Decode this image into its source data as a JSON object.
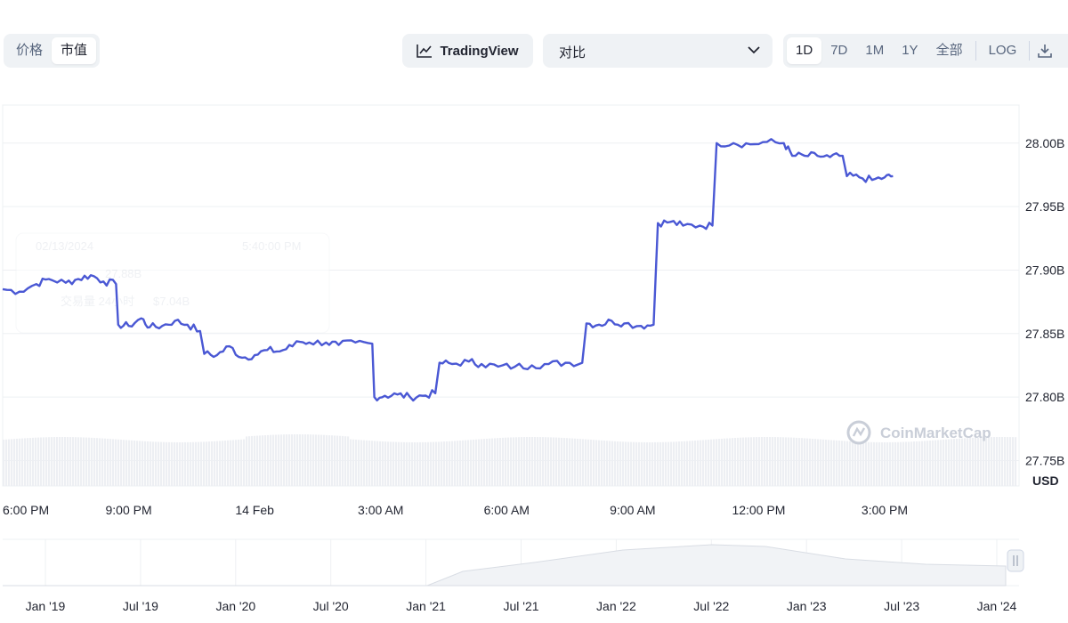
{
  "toolbar": {
    "type_options": [
      "价格",
      "市值"
    ],
    "type_active": "市值",
    "tradingview_label": "TradingView",
    "compare_label": "对比",
    "range_options": [
      "1D",
      "7D",
      "1M",
      "1Y",
      "全部"
    ],
    "range_active": "1D",
    "log_label": "LOG",
    "colors": {
      "segment_bg": "#eff2f5",
      "line": "#4a58d4"
    }
  },
  "watermark": "CoinMarketCap",
  "tooltip_ghost": {
    "date": "02/13/2024",
    "time": "5:40:00 PM",
    "market_cap": "27.88B",
    "volume_label": "交易量 24小时",
    "volume": "$7.04B"
  },
  "chart_data": {
    "type": "line",
    "title": "",
    "currency_label": "USD",
    "ylim": [
      27.73,
      28.03
    ],
    "y_ticks": [
      {
        "value": 28.0,
        "label": "28.00B"
      },
      {
        "value": 27.95,
        "label": "27.95B"
      },
      {
        "value": 27.9,
        "label": "27.90B"
      },
      {
        "value": 27.85,
        "label": "27.85B"
      },
      {
        "value": 27.8,
        "label": "27.80B"
      },
      {
        "value": 27.75,
        "label": "27.75B"
      }
    ],
    "xlim": [
      18.0,
      42.2
    ],
    "x_ticks": [
      {
        "value": 18,
        "label": "6:00 PM"
      },
      {
        "value": 21,
        "label": "9:00 PM"
      },
      {
        "value": 24,
        "label": "14 Feb"
      },
      {
        "value": 27,
        "label": "3:00 AM"
      },
      {
        "value": 30,
        "label": "6:00 AM"
      },
      {
        "value": 33,
        "label": "9:00 AM"
      },
      {
        "value": 36,
        "label": "12:00 PM"
      },
      {
        "value": 39,
        "label": "3:00 PM"
      }
    ],
    "grid": true,
    "series": [
      {
        "values": [
          [
            18.0,
            27.885
          ],
          [
            18.4,
            27.883
          ],
          [
            18.8,
            27.889
          ],
          [
            19.1,
            27.893
          ],
          [
            19.5,
            27.89
          ],
          [
            19.8,
            27.893
          ],
          [
            20.1,
            27.896
          ],
          [
            20.4,
            27.891
          ],
          [
            20.7,
            27.889
          ],
          [
            20.75,
            27.857
          ],
          [
            21.0,
            27.856
          ],
          [
            21.3,
            27.862
          ],
          [
            21.5,
            27.855
          ],
          [
            21.8,
            27.856
          ],
          [
            22.1,
            27.86
          ],
          [
            22.4,
            27.857
          ],
          [
            22.7,
            27.852
          ],
          [
            22.8,
            27.834
          ],
          [
            23.1,
            27.833
          ],
          [
            23.4,
            27.84
          ],
          [
            23.7,
            27.831
          ],
          [
            24.0,
            27.833
          ],
          [
            24.3,
            27.837
          ],
          [
            24.6,
            27.836
          ],
          [
            24.9,
            27.84
          ],
          [
            25.0,
            27.844
          ],
          [
            25.3,
            27.843
          ],
          [
            25.7,
            27.843
          ],
          [
            26.0,
            27.841
          ],
          [
            26.4,
            27.843
          ],
          [
            26.8,
            27.842
          ],
          [
            26.85,
            27.8
          ],
          [
            27.1,
            27.801
          ],
          [
            27.4,
            27.802
          ],
          [
            27.7,
            27.8
          ],
          [
            28.0,
            27.801
          ],
          [
            28.3,
            27.803
          ],
          [
            28.4,
            27.827
          ],
          [
            28.7,
            27.826
          ],
          [
            29.1,
            27.828
          ],
          [
            29.4,
            27.826
          ],
          [
            29.8,
            27.824
          ],
          [
            30.2,
            27.824
          ],
          [
            30.6,
            27.825
          ],
          [
            31.0,
            27.826
          ],
          [
            31.4,
            27.827
          ],
          [
            31.8,
            27.827
          ],
          [
            31.9,
            27.858
          ],
          [
            32.2,
            27.857
          ],
          [
            32.5,
            27.86
          ],
          [
            32.8,
            27.858
          ],
          [
            33.2,
            27.856
          ],
          [
            33.5,
            27.857
          ],
          [
            33.6,
            27.937
          ],
          [
            33.9,
            27.938
          ],
          [
            34.2,
            27.935
          ],
          [
            34.6,
            27.935
          ],
          [
            34.9,
            27.935
          ],
          [
            35.0,
            28.0
          ],
          [
            35.4,
            28.0
          ],
          [
            35.8,
            27.999
          ],
          [
            36.2,
            28.001
          ],
          [
            36.6,
            28.0
          ],
          [
            36.8,
            27.99
          ],
          [
            37.1,
            27.99
          ],
          [
            37.4,
            27.99
          ],
          [
            37.7,
            27.989
          ],
          [
            38.0,
            27.99
          ],
          [
            38.1,
            27.974
          ],
          [
            38.4,
            27.973
          ],
          [
            38.7,
            27.971
          ],
          [
            39.0,
            27.973
          ],
          [
            39.2,
            27.974
          ]
        ]
      }
    ]
  },
  "navigator": {
    "x_labels": [
      "Jan '19",
      "Jul '19",
      "Jan '20",
      "Jul '20",
      "Jan '21",
      "Jul '21",
      "Jan '22",
      "Jul '22",
      "Jan '23",
      "Jul '23",
      "Jan '24"
    ]
  }
}
